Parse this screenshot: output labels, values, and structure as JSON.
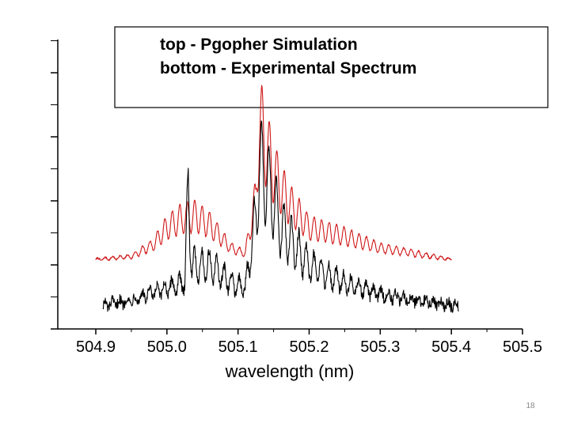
{
  "chart_data": {
    "type": "line",
    "title": "",
    "xlabel": "wavelength (nm)",
    "ylabel": "",
    "xlim": [
      504.9,
      505.5
    ],
    "ylim": [
      0,
      1
    ],
    "x_ticks": [
      "504.9",
      "505.0",
      "505.1",
      "505.2",
      "505.3",
      "505.4",
      "505.5"
    ],
    "legend": {
      "placement": "top",
      "lines": [
        "top - Pgopher Simulation",
        "bottom - Experimental Spectrum"
      ]
    },
    "series": [
      {
        "name": "Pgopher Simulation",
        "color": "#d01818",
        "points": [
          [
            504.9,
            0.24
          ],
          [
            504.95,
            0.25
          ],
          [
            504.98,
            0.29
          ],
          [
            505.0,
            0.35
          ],
          [
            505.02,
            0.38
          ],
          [
            505.04,
            0.39
          ],
          [
            505.06,
            0.36
          ],
          [
            505.09,
            0.28
          ],
          [
            505.11,
            0.26
          ],
          [
            505.125,
            0.45
          ],
          [
            505.13,
            0.71
          ],
          [
            505.135,
            0.67
          ],
          [
            505.15,
            0.54
          ],
          [
            505.17,
            0.44
          ],
          [
            505.2,
            0.35
          ],
          [
            505.25,
            0.32
          ],
          [
            505.3,
            0.28
          ],
          [
            505.35,
            0.26
          ],
          [
            505.4,
            0.24
          ]
        ]
      },
      {
        "name": "Experimental Spectrum",
        "color": "#000000",
        "points": [
          [
            504.91,
            0.08
          ],
          [
            504.95,
            0.1
          ],
          [
            505.0,
            0.14
          ],
          [
            505.025,
            0.16
          ],
          [
            505.03,
            0.48
          ],
          [
            505.035,
            0.22
          ],
          [
            505.06,
            0.22
          ],
          [
            505.09,
            0.16
          ],
          [
            505.11,
            0.14
          ],
          [
            505.125,
            0.38
          ],
          [
            505.13,
            0.56
          ],
          [
            505.14,
            0.52
          ],
          [
            505.16,
            0.35
          ],
          [
            505.2,
            0.22
          ],
          [
            505.25,
            0.16
          ],
          [
            505.3,
            0.12
          ],
          [
            505.35,
            0.1
          ],
          [
            505.41,
            0.08
          ]
        ]
      }
    ]
  },
  "page": {
    "number": "18"
  }
}
